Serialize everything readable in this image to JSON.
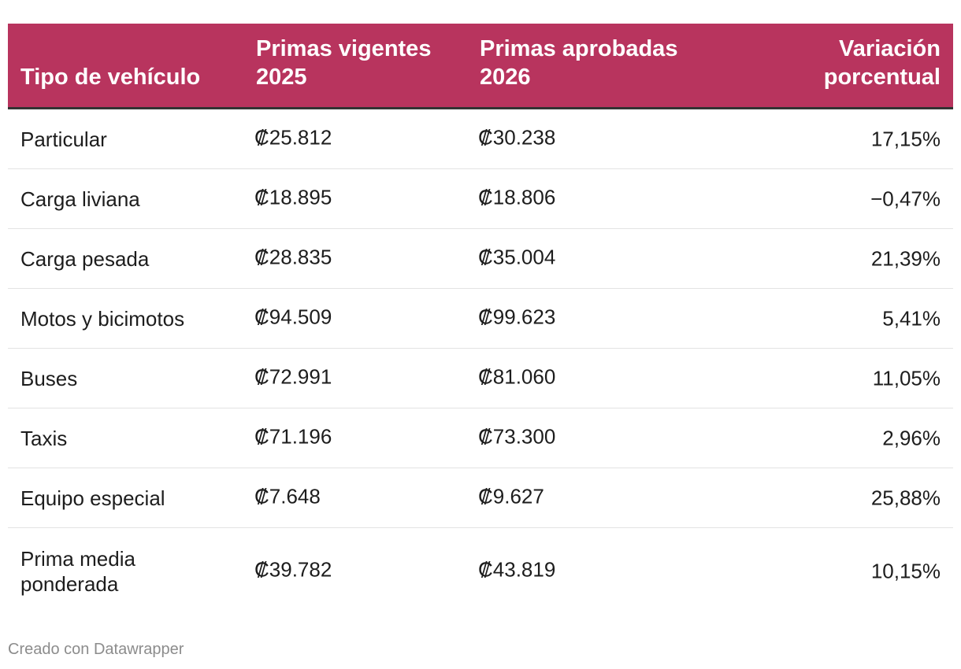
{
  "chart_data": {
    "type": "table",
    "header_color": "#b8345e",
    "columns": [
      "Tipo de vehículo",
      "Primas vigentes 2025",
      "Primas aprobadas 2026",
      "Variación porcentual"
    ],
    "rows": [
      {
        "tipo": "Particular",
        "vigentes_2025": "₡25.812",
        "aprobadas_2026": "₡30.238",
        "variacion": "17,15%"
      },
      {
        "tipo": "Carga liviana",
        "vigentes_2025": "₡18.895",
        "aprobadas_2026": "₡18.806",
        "variacion": "−0,47%"
      },
      {
        "tipo": "Carga pesada",
        "vigentes_2025": "₡28.835",
        "aprobadas_2026": "₡35.004",
        "variacion": "21,39%"
      },
      {
        "tipo": "Motos y bicimotos",
        "vigentes_2025": "₡94.509",
        "aprobadas_2026": "₡99.623",
        "variacion": "5,41%"
      },
      {
        "tipo": "Buses",
        "vigentes_2025": "₡72.991",
        "aprobadas_2026": "₡81.060",
        "variacion": "11,05%"
      },
      {
        "tipo": "Taxis",
        "vigentes_2025": "₡71.196",
        "aprobadas_2026": "₡73.300",
        "variacion": "2,96%"
      },
      {
        "tipo": "Equipo especial",
        "vigentes_2025": "₡7.648",
        "aprobadas_2026": "₡9.627",
        "variacion": "25,88%"
      },
      {
        "tipo": "Prima media ponderada",
        "vigentes_2025": "₡39.782",
        "aprobadas_2026": "₡43.819",
        "variacion": "10,15%"
      }
    ]
  },
  "footer": "Creado con Datawrapper"
}
